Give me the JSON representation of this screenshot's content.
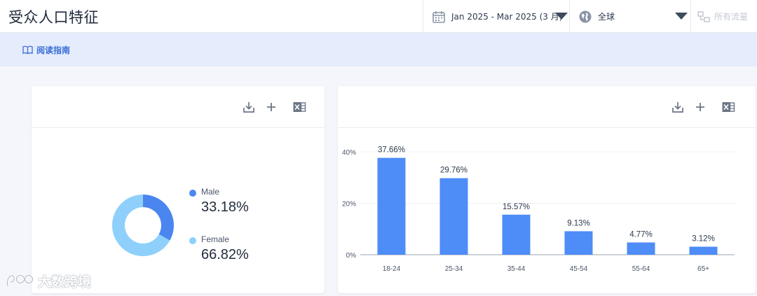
{
  "header": {
    "title": "受众人口特征",
    "date_range": "Jan 2025 - Mar 2025 (3 月)",
    "region": "全球",
    "traffic": "所有流量"
  },
  "guide": {
    "label": "阅读指南"
  },
  "gender_card": {
    "male_label": "Male",
    "male_value": "33.18%",
    "female_label": "Female",
    "female_value": "66.82%"
  },
  "colors": {
    "male": "#4b86f0",
    "female": "#8ed0fb",
    "bar": "#4e8cf7"
  },
  "chart_data": {
    "type": "bar",
    "categories": [
      "18-24",
      "25-34",
      "35-44",
      "45-54",
      "55-64",
      "65+"
    ],
    "values": [
      37.66,
      29.76,
      15.57,
      9.13,
      4.77,
      3.12
    ],
    "data_labels": [
      "37.66%",
      "29.76%",
      "15.57%",
      "9.13%",
      "4.77%",
      "3.12%"
    ],
    "y_ticks": [
      0,
      20,
      40
    ],
    "y_tick_labels": [
      "0%",
      "20%",
      "40%"
    ],
    "ylim": [
      0,
      40
    ],
    "grid": true
  },
  "gender_chart": {
    "type": "pie",
    "categories": [
      "Male",
      "Female"
    ],
    "values": [
      33.18,
      66.82
    ]
  },
  "watermark": {
    "text": "大数跨境"
  }
}
